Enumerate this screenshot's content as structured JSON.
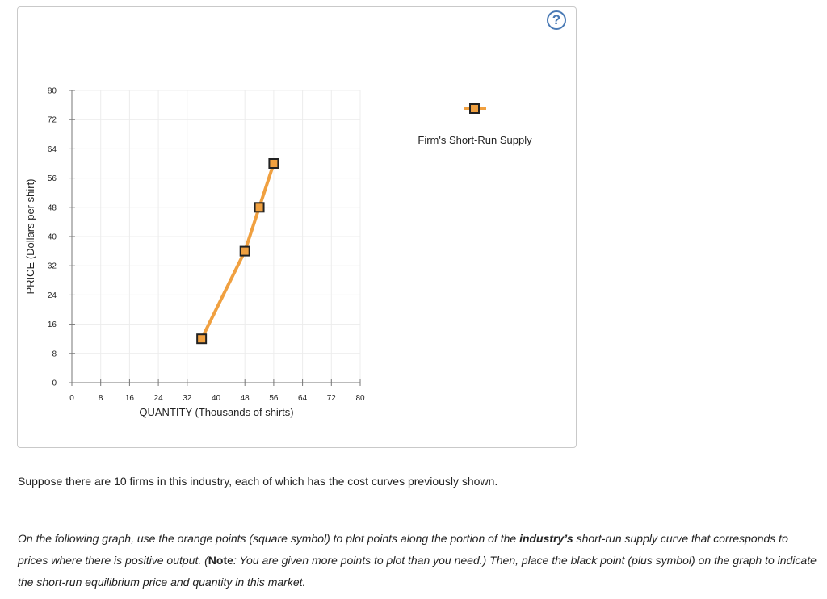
{
  "help_icon": "question-mark-icon",
  "chart_data": {
    "type": "line",
    "xlabel": "QUANTITY (Thousands of shirts)",
    "ylabel": "PRICE (Dollars per shirt)",
    "xlim": [
      0,
      80
    ],
    "ylim": [
      0,
      80
    ],
    "x_ticks": [
      0,
      8,
      16,
      24,
      32,
      40,
      48,
      56,
      64,
      72,
      80
    ],
    "y_ticks": [
      0,
      8,
      16,
      24,
      32,
      40,
      48,
      56,
      64,
      72,
      80
    ],
    "grid": true,
    "legend_position": "right",
    "series": [
      {
        "name": "Firm's Short-Run Supply",
        "color": "#f0a040",
        "marker": "square",
        "points": [
          {
            "x": 36,
            "y": 12
          },
          {
            "x": 48,
            "y": 36
          },
          {
            "x": 52,
            "y": 48
          },
          {
            "x": 56,
            "y": 60
          }
        ]
      }
    ]
  },
  "text": {
    "p1": "Suppose there are 10 firms in this industry, each of which has the cost curves previously shown.",
    "p2_a": "On the following graph, use the orange points (square symbol) to plot points along the portion of the ",
    "p2_bold": "industry’s",
    "p2_b": " short-run supply curve that corresponds to prices where there is positive output. (",
    "p2_note": "Note",
    "p2_c": ": You are given more points to plot than you need.) Then, place the black point (plus symbol) on the graph to indicate the short-run equilibrium price and quantity in this market."
  }
}
